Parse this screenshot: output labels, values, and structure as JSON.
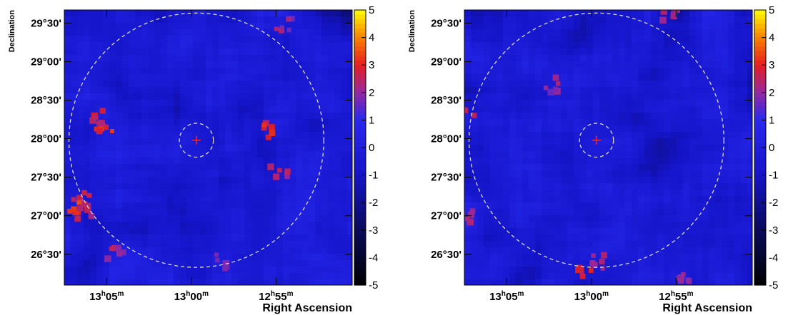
{
  "chart_data": [
    {
      "type": "heatmap",
      "title": "",
      "xlabel": "Right Ascension",
      "ylabel": "Declination",
      "x_ticks": [
        {
          "value": 5,
          "hour": "13",
          "min": "05"
        },
        {
          "value": 0,
          "hour": "13",
          "min": "00"
        },
        {
          "value": -5,
          "hour": "12",
          "min": "55"
        }
      ],
      "xlim": [
        7.5,
        -9.5
      ],
      "y_ticks": [
        "29°30'",
        "29°00'",
        "28°30'",
        "28°00'",
        "27°30'",
        "27°00'",
        "26°30'"
      ],
      "y_tick_values": [
        29.5,
        29.0,
        28.5,
        28.0,
        27.5,
        27.0,
        26.5
      ],
      "ylim": [
        26.1,
        29.67
      ],
      "colorbar": {
        "min": -5,
        "max": 5,
        "ticks": [
          "5",
          "4",
          "3",
          "2",
          "1",
          "0",
          "-1",
          "-2",
          "-3",
          "-4",
          "-5"
        ]
      },
      "source_marker": {
        "ra_offset": -0.3,
        "dec": 27.98
      },
      "inner_circle_radius_deg": 0.2,
      "outer_circle_radius_deg": 1.5,
      "hotspots": [
        {
          "ra_offset": 5.2,
          "dec": 28.1,
          "value": 3.4
        },
        {
          "ra_offset": 5.6,
          "dec": 28.3,
          "value": 3.0
        },
        {
          "ra_offset": 6.8,
          "dec": 27.1,
          "value": 3.6
        },
        {
          "ra_offset": 6.5,
          "dec": 27.2,
          "value": 3.0
        },
        {
          "ra_offset": 6.2,
          "dec": 27.0,
          "value": 2.8
        },
        {
          "ra_offset": -4.7,
          "dec": 28.1,
          "value": 3.2
        },
        {
          "ra_offset": -5.2,
          "dec": 27.6,
          "value": 2.6
        },
        {
          "ra_offset": 4.5,
          "dec": 26.5,
          "value": 2.6
        },
        {
          "ra_offset": -1.8,
          "dec": 26.4,
          "value": 2.4
        },
        {
          "ra_offset": -5.5,
          "dec": 29.5,
          "value": 2.4
        }
      ]
    },
    {
      "type": "heatmap",
      "title": "",
      "xlabel": "Right Ascension",
      "ylabel": "Declination",
      "x_ticks": [
        {
          "value": 5,
          "hour": "13",
          "min": "05"
        },
        {
          "value": 0,
          "hour": "13",
          "min": "00"
        },
        {
          "value": -5,
          "hour": "12",
          "min": "55"
        }
      ],
      "xlim": [
        7.5,
        -9.5
      ],
      "y_ticks": [
        "29°30'",
        "29°00'",
        "28°30'",
        "28°00'",
        "27°30'",
        "27°00'",
        "26°30'"
      ],
      "y_tick_values": [
        29.5,
        29.0,
        28.5,
        28.0,
        27.5,
        27.0,
        26.5
      ],
      "ylim": [
        26.1,
        29.67
      ],
      "colorbar": {
        "min": -5,
        "max": 5,
        "ticks": [
          "5",
          "4",
          "3",
          "2",
          "1",
          "0",
          "-1",
          "-2",
          "-3",
          "-4",
          "-5"
        ]
      },
      "source_marker": {
        "ra_offset": -0.3,
        "dec": 27.98
      },
      "inner_circle_radius_deg": 0.2,
      "outer_circle_radius_deg": 1.5,
      "hotspots": [
        {
          "ra_offset": 0.3,
          "dec": 26.3,
          "value": 3.2
        },
        {
          "ra_offset": -0.3,
          "dec": 26.4,
          "value": 2.8
        },
        {
          "ra_offset": 7.3,
          "dec": 27.0,
          "value": 2.6
        },
        {
          "ra_offset": 7.4,
          "dec": 28.3,
          "value": 2.6
        },
        {
          "ra_offset": 2.5,
          "dec": 28.7,
          "value": 2.4
        },
        {
          "ra_offset": -4.6,
          "dec": 29.6,
          "value": 2.5
        },
        {
          "ra_offset": -5.6,
          "dec": 26.2,
          "value": 2.2
        }
      ]
    }
  ]
}
